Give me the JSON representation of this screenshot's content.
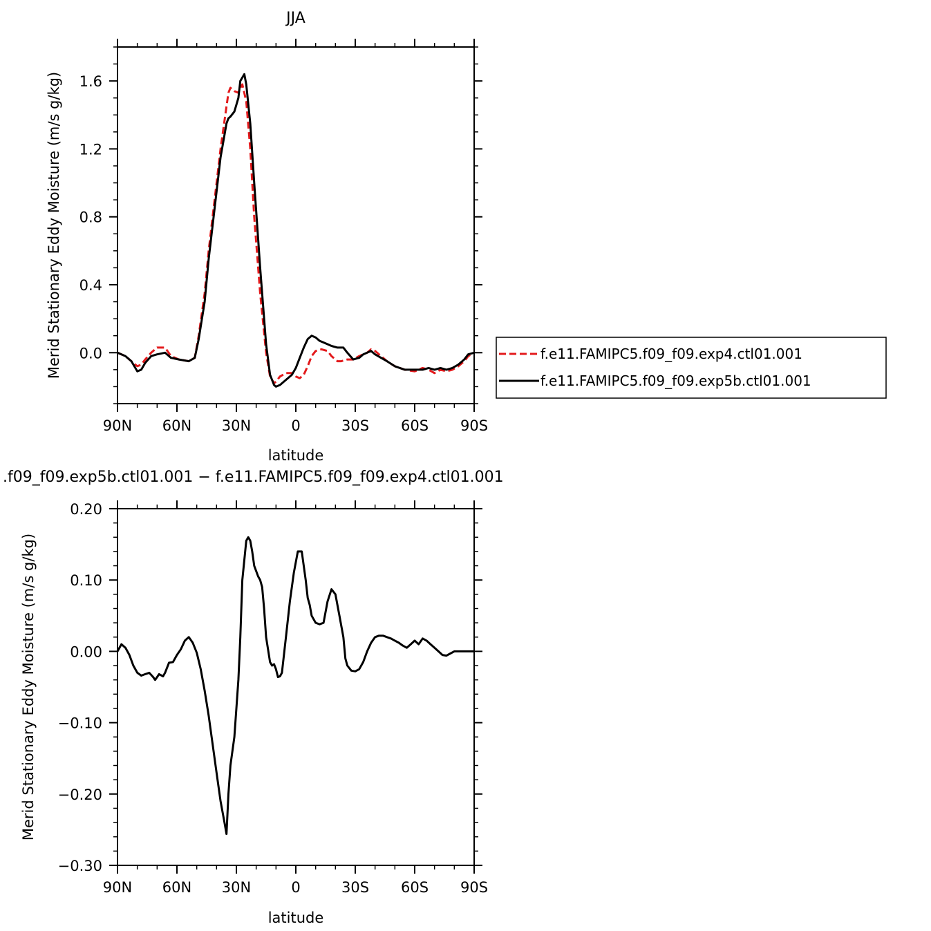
{
  "chart_data": [
    {
      "type": "line",
      "title": "JJA",
      "xlabel": "latitude",
      "ylabel": "Merid Stationary Eddy Moisture (m/s g/kg)",
      "xlim": [
        90,
        -90
      ],
      "ylim": [
        -0.3,
        1.8
      ],
      "x_ticks": [
        90,
        60,
        30,
        0,
        -30,
        -60,
        -90
      ],
      "x_tick_labels": [
        "90N",
        "60N",
        "30N",
        "0",
        "30S",
        "60S",
        "90S"
      ],
      "y_ticks": [
        0.0,
        0.4,
        0.8,
        1.2,
        1.6
      ],
      "y_tick_labels": [
        "0.0",
        "0.4",
        "0.8",
        "1.2",
        "1.6"
      ],
      "legend_position": "right",
      "series": [
        {
          "name": "f.e11.FAMIPC5.f09_f09.exp4.ctl01.001",
          "color": "#e31a1c",
          "dash": "dashed",
          "x": [
            90,
            86,
            83,
            80,
            78,
            76,
            73,
            70,
            66,
            63,
            59,
            54,
            51,
            49,
            46,
            44,
            41,
            38,
            35,
            34,
            33,
            31,
            29,
            28,
            27,
            25,
            23,
            21,
            18,
            15,
            13,
            11,
            10,
            8,
            5,
            2,
            0,
            -2,
            -4,
            -6,
            -8,
            -10,
            -13,
            -16,
            -18,
            -21,
            -23,
            -26,
            -29,
            -32,
            -34,
            -36,
            -38,
            -40,
            -43,
            -46,
            -50,
            -55,
            -60,
            -64,
            -67,
            -70,
            -73,
            -76,
            -79,
            -82,
            -85,
            -87,
            -90
          ],
          "y": [
            0.0,
            -0.02,
            -0.05,
            -0.08,
            -0.07,
            -0.04,
            0.0,
            0.03,
            0.03,
            -0.02,
            -0.04,
            -0.05,
            -0.03,
            0.1,
            0.35,
            0.6,
            0.9,
            1.2,
            1.45,
            1.53,
            1.56,
            1.54,
            1.53,
            1.56,
            1.58,
            1.48,
            1.2,
            0.8,
            0.35,
            0.0,
            -0.14,
            -0.18,
            -0.17,
            -0.14,
            -0.12,
            -0.12,
            -0.14,
            -0.15,
            -0.13,
            -0.08,
            -0.02,
            0.01,
            0.02,
            0.01,
            -0.02,
            -0.05,
            -0.05,
            -0.04,
            -0.04,
            -0.02,
            -0.01,
            0.0,
            0.02,
            0.01,
            -0.02,
            -0.05,
            -0.08,
            -0.1,
            -0.11,
            -0.09,
            -0.1,
            -0.12,
            -0.1,
            -0.11,
            -0.1,
            -0.08,
            -0.05,
            -0.02,
            0.0
          ]
        },
        {
          "name": "f.e11.FAMIPC5.f09_f09.exp5b.ctl01.001",
          "color": "#000000",
          "dash": "solid",
          "x": [
            90,
            86,
            83,
            80,
            78,
            76,
            73,
            70,
            66,
            63,
            59,
            54,
            51,
            49,
            46,
            44,
            41,
            38,
            35,
            34,
            33,
            31,
            29,
            28,
            26,
            25,
            23,
            21,
            18,
            15,
            13,
            11,
            10,
            8,
            5,
            2,
            0,
            -2,
            -4,
            -6,
            -8,
            -10,
            -12,
            -14,
            -16,
            -18,
            -21,
            -24,
            -26,
            -29,
            -32,
            -34,
            -36,
            -38,
            -40,
            -43,
            -46,
            -50,
            -55,
            -60,
            -64,
            -67,
            -70,
            -73,
            -76,
            -79,
            -82,
            -85,
            -87,
            -90
          ],
          "y": [
            0.0,
            -0.02,
            -0.05,
            -0.11,
            -0.1,
            -0.06,
            -0.02,
            -0.01,
            0.0,
            -0.03,
            -0.04,
            -0.05,
            -0.03,
            0.08,
            0.3,
            0.55,
            0.85,
            1.15,
            1.35,
            1.38,
            1.39,
            1.42,
            1.5,
            1.6,
            1.64,
            1.58,
            1.35,
            1.0,
            0.5,
            0.05,
            -0.13,
            -0.19,
            -0.2,
            -0.19,
            -0.16,
            -0.13,
            -0.09,
            -0.03,
            0.03,
            0.08,
            0.1,
            0.09,
            0.07,
            0.06,
            0.05,
            0.04,
            0.03,
            0.03,
            0.0,
            -0.04,
            -0.03,
            -0.01,
            0.0,
            0.01,
            -0.01,
            -0.03,
            -0.05,
            -0.08,
            -0.1,
            -0.1,
            -0.1,
            -0.09,
            -0.1,
            -0.09,
            -0.1,
            -0.09,
            -0.07,
            -0.04,
            -0.01,
            0.0
          ]
        }
      ]
    },
    {
      "type": "line",
      "title": ".f09_f09.exp5b.ctl01.001 − f.e11.FAMIPC5.f09_f09.exp4.ctl01.001",
      "xlabel": "latitude",
      "ylabel": "Merid Stationary Eddy Moisture (m/s g/kg)",
      "xlim": [
        90,
        -90
      ],
      "ylim": [
        -0.3,
        0.2
      ],
      "x_ticks": [
        90,
        60,
        30,
        0,
        -30,
        -60,
        -90
      ],
      "x_tick_labels": [
        "90N",
        "60N",
        "30N",
        "0",
        "30S",
        "60S",
        "90S"
      ],
      "y_ticks": [
        -0.3,
        -0.2,
        -0.1,
        0.0,
        0.1,
        0.2
      ],
      "y_tick_labels": [
        "−0.30",
        "−0.20",
        "−0.10",
        "0.00",
        "0.10",
        "0.20"
      ],
      "series": [
        {
          "color": "#000000",
          "dash": "solid",
          "x": [
            90,
            88,
            86,
            84,
            82,
            80,
            78,
            76,
            74,
            72,
            71,
            70,
            69,
            67,
            66,
            64,
            62,
            60,
            58,
            56,
            54,
            52,
            50,
            48,
            46,
            44,
            42,
            40,
            38,
            36,
            35,
            34,
            33,
            31,
            29,
            28,
            27,
            25,
            24,
            23,
            22,
            21,
            19,
            18,
            17,
            16,
            15,
            13,
            12,
            11,
            10,
            9,
            8,
            7,
            5,
            3,
            1,
            -1,
            -3,
            -5,
            -6,
            -7,
            -8,
            -10,
            -12,
            -14,
            -16,
            -18,
            -20,
            -22,
            -24,
            -25,
            -26,
            -28,
            -30,
            -32,
            -34,
            -36,
            -38,
            -40,
            -42,
            -44,
            -46,
            -48,
            -50,
            -52,
            -54,
            -56,
            -58,
            -60,
            -62,
            -64,
            -66,
            -68,
            -70,
            -72,
            -74,
            -76,
            -78,
            -80,
            -82,
            -84,
            -86,
            -88,
            -90
          ],
          "y": [
            0.0,
            0.01,
            0.005,
            -0.005,
            -0.02,
            -0.03,
            -0.034,
            -0.032,
            -0.03,
            -0.036,
            -0.04,
            -0.036,
            -0.032,
            -0.035,
            -0.03,
            -0.016,
            -0.015,
            -0.005,
            0.003,
            0.015,
            0.02,
            0.012,
            -0.002,
            -0.025,
            -0.055,
            -0.09,
            -0.13,
            -0.17,
            -0.21,
            -0.24,
            -0.256,
            -0.2,
            -0.16,
            -0.12,
            -0.04,
            0.02,
            0.1,
            0.155,
            0.16,
            0.155,
            0.14,
            0.12,
            0.105,
            0.1,
            0.09,
            0.06,
            0.02,
            -0.015,
            -0.02,
            -0.018,
            -0.025,
            -0.036,
            -0.035,
            -0.03,
            0.02,
            0.07,
            0.11,
            0.14,
            0.14,
            0.1,
            0.075,
            0.065,
            0.05,
            0.04,
            0.038,
            0.04,
            0.07,
            0.087,
            0.08,
            0.05,
            0.02,
            -0.01,
            -0.02,
            -0.027,
            -0.028,
            -0.025,
            -0.015,
            0.0,
            0.012,
            0.02,
            0.022,
            0.022,
            0.02,
            0.018,
            0.015,
            0.012,
            0.008,
            0.005,
            0.01,
            0.015,
            0.01,
            0.018,
            0.015,
            0.01,
            0.005,
            0.0,
            -0.005,
            -0.006,
            -0.003,
            0.0,
            0.0,
            0.0,
            0.0,
            0.0,
            0.0
          ]
        }
      ]
    }
  ]
}
